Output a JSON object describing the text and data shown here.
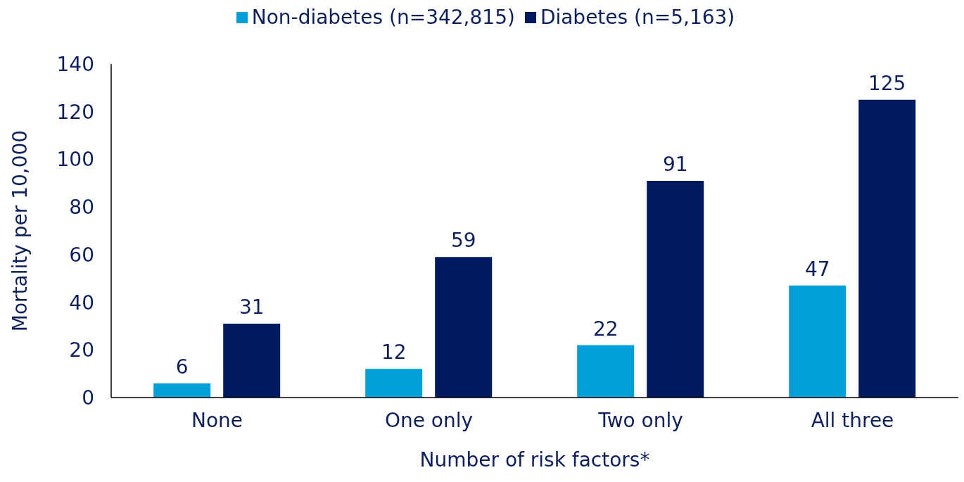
{
  "chart_data": {
    "type": "bar",
    "xlabel": "Number of risk factors*",
    "ylabel": "Mortality per 10,000",
    "categories": [
      "None",
      "One only",
      "Two only",
      "All three"
    ],
    "series": [
      {
        "name": "Non-diabetes (n=342,815)",
        "color": "#009fda",
        "values": [
          6,
          12,
          22,
          47
        ]
      },
      {
        "name": "Diabetes (n=5,163)",
        "color": "#001a5f",
        "values": [
          31,
          59,
          91,
          125
        ]
      }
    ],
    "ylim": [
      0,
      140
    ],
    "yticks": [
      0,
      20,
      40,
      60,
      80,
      100,
      120,
      140
    ],
    "grid": false,
    "legend": "top",
    "data_labels": true
  }
}
